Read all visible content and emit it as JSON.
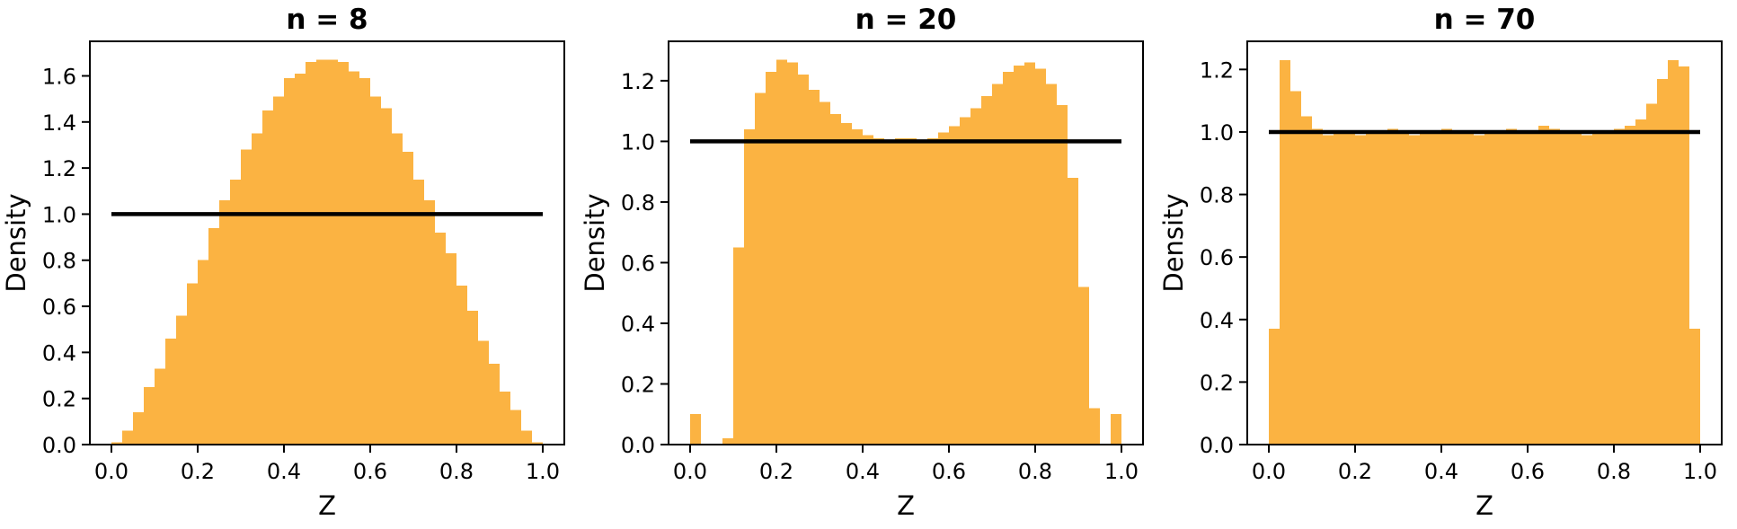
{
  "figure": {
    "background": "#ffffff",
    "panel_count": 3
  },
  "chart_data": [
    {
      "type": "bar",
      "title": "n = 8",
      "n": 8,
      "xlabel": "Z",
      "ylabel": "Density",
      "bar_color": "#FBB342",
      "reference_line": {
        "y": 1.0,
        "color": "#000000",
        "x_start": 0.0,
        "x_end": 1.0
      },
      "xlim": [
        -0.05,
        1.05
      ],
      "ylim": [
        0,
        1.75
      ],
      "xticks": [
        0.0,
        0.2,
        0.4,
        0.6,
        0.8,
        1.0
      ],
      "yticks": [
        0.0,
        0.2,
        0.4,
        0.6,
        0.8,
        1.0,
        1.2,
        1.4,
        1.6
      ],
      "grid": false,
      "legend": "none",
      "bin_start": 0.0,
      "bin_width": 0.025,
      "values": [
        0.01,
        0.06,
        0.14,
        0.25,
        0.33,
        0.46,
        0.56,
        0.7,
        0.8,
        0.94,
        1.06,
        1.15,
        1.28,
        1.35,
        1.45,
        1.51,
        1.59,
        1.61,
        1.66,
        1.67,
        1.67,
        1.66,
        1.62,
        1.59,
        1.51,
        1.46,
        1.35,
        1.27,
        1.15,
        1.06,
        0.92,
        0.83,
        0.69,
        0.58,
        0.45,
        0.35,
        0.23,
        0.15,
        0.06,
        0.01
      ]
    },
    {
      "type": "bar",
      "title": "n = 20",
      "n": 20,
      "xlabel": "Z",
      "ylabel": "Density",
      "bar_color": "#FBB342",
      "reference_line": {
        "y": 1.0,
        "color": "#000000",
        "x_start": 0.0,
        "x_end": 1.0
      },
      "xlim": [
        -0.05,
        1.05
      ],
      "ylim": [
        0,
        1.33
      ],
      "xticks": [
        0.0,
        0.2,
        0.4,
        0.6,
        0.8,
        1.0
      ],
      "yticks": [
        0.0,
        0.2,
        0.4,
        0.6,
        0.8,
        1.0,
        1.2
      ],
      "grid": false,
      "legend": "none",
      "bin_start": 0.0,
      "bin_width": 0.025,
      "values": [
        0.1,
        0.0,
        0.0,
        0.02,
        0.65,
        1.04,
        1.16,
        1.23,
        1.27,
        1.26,
        1.22,
        1.17,
        1.13,
        1.09,
        1.06,
        1.04,
        1.02,
        1.01,
        1.0,
        1.01,
        1.01,
        1.0,
        1.01,
        1.03,
        1.05,
        1.08,
        1.11,
        1.15,
        1.19,
        1.23,
        1.25,
        1.26,
        1.24,
        1.19,
        1.12,
        0.88,
        0.52,
        0.12,
        0.0,
        0.1
      ]
    },
    {
      "type": "bar",
      "title": "n = 70",
      "n": 70,
      "xlabel": "Z",
      "ylabel": "Density",
      "bar_color": "#FBB342",
      "reference_line": {
        "y": 1.0,
        "color": "#000000",
        "x_start": 0.0,
        "x_end": 1.0
      },
      "xlim": [
        -0.05,
        1.05
      ],
      "ylim": [
        0,
        1.29
      ],
      "xticks": [
        0.0,
        0.2,
        0.4,
        0.6,
        0.8,
        1.0
      ],
      "yticks": [
        0.0,
        0.2,
        0.4,
        0.6,
        0.8,
        1.0,
        1.2
      ],
      "grid": false,
      "legend": "none",
      "bin_start": 0.0,
      "bin_width": 0.025,
      "values": [
        0.37,
        1.23,
        1.13,
        1.05,
        1.01,
        0.99,
        1.0,
        1.0,
        0.99,
        1.0,
        1.0,
        1.01,
        1.0,
        0.99,
        1.0,
        1.0,
        1.01,
        1.0,
        1.0,
        0.99,
        1.0,
        1.0,
        1.01,
        1.0,
        1.0,
        1.02,
        1.01,
        1.0,
        1.0,
        0.99,
        1.0,
        1.0,
        1.01,
        1.02,
        1.04,
        1.09,
        1.17,
        1.23,
        1.21,
        0.37
      ]
    }
  ]
}
